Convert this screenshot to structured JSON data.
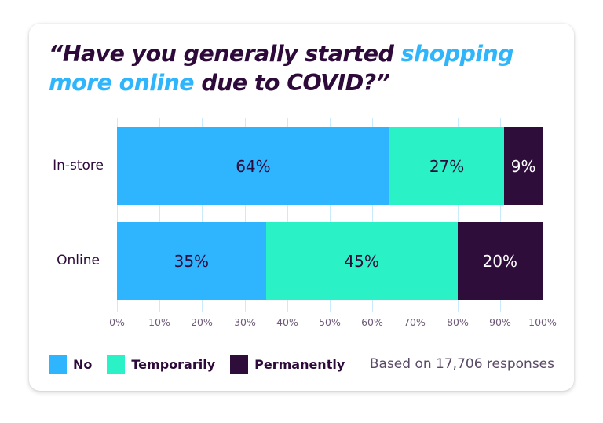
{
  "title": {
    "part1": "“Have you generally started ",
    "highlight1": "shopping more online",
    "part2": " due to COVID?”",
    "highlight_color": "#2fb5fb",
    "text_color": "#2d0a3a"
  },
  "colors": {
    "no": "#2eb5fd",
    "temporarily": "#2bf2c6",
    "permanently": "#2e0d3b"
  },
  "legend": [
    {
      "label": "No",
      "color": "#2eb5fd"
    },
    {
      "label": "Temporarily",
      "color": "#2bf2c6"
    },
    {
      "label": "Permanently",
      "color": "#2e0d3b"
    }
  ],
  "footnote": "Based on 17,706 responses",
  "axis": {
    "ticks": [
      "0%",
      "10%",
      "20%",
      "30%",
      "40%",
      "50%",
      "60%",
      "70%",
      "80%",
      "90%",
      "100%"
    ]
  },
  "rows": [
    {
      "label": "In-store",
      "segments": [
        {
          "series": "No",
          "value": 64,
          "text": "64%"
        },
        {
          "series": "Temporarily",
          "value": 27,
          "text": "27%"
        },
        {
          "series": "Permanently",
          "value": 9,
          "text": "9%"
        }
      ]
    },
    {
      "label": "Online",
      "segments": [
        {
          "series": "No",
          "value": 35,
          "text": "35%"
        },
        {
          "series": "Temporarily",
          "value": 45,
          "text": "45%"
        },
        {
          "series": "Permanently",
          "value": 20,
          "text": "20%"
        }
      ]
    }
  ],
  "chart_data": {
    "type": "bar",
    "orientation": "horizontal",
    "stacked": true,
    "title": "“Have you generally started shopping more online due to COVID?”",
    "categories": [
      "In-store",
      "Online"
    ],
    "series": [
      {
        "name": "No",
        "values": [
          64,
          35
        ]
      },
      {
        "name": "Temporarily",
        "values": [
          27,
          45
        ]
      },
      {
        "name": "Permanently",
        "values": [
          9,
          20
        ]
      }
    ],
    "xlabel": "",
    "ylabel": "",
    "xlim": [
      0,
      100
    ],
    "x_tick_labels": [
      "0%",
      "10%",
      "20%",
      "30%",
      "40%",
      "50%",
      "60%",
      "70%",
      "80%",
      "90%",
      "100%"
    ],
    "grid": true,
    "legend_position": "bottom-left",
    "annotation": "Based on 17,706 responses"
  }
}
